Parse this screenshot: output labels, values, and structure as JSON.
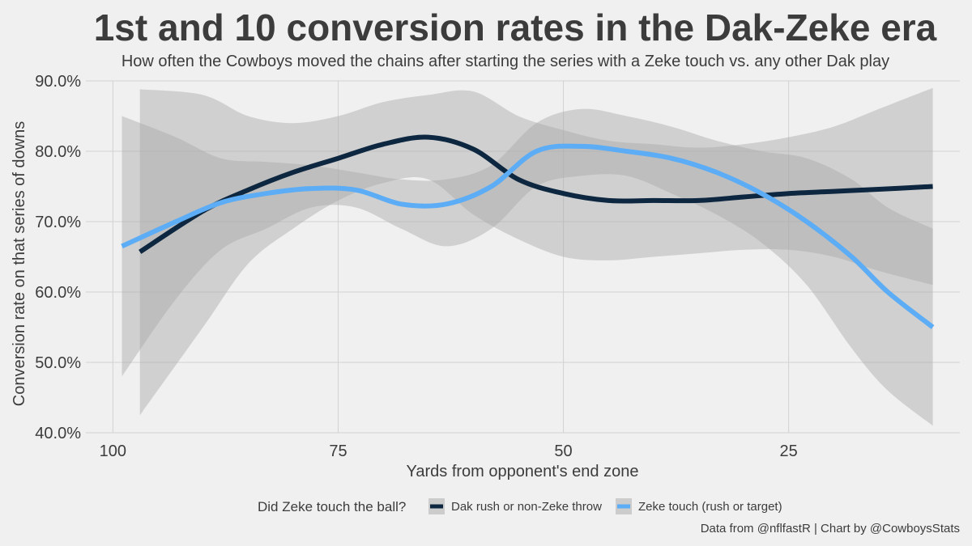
{
  "chart_data": {
    "type": "line",
    "title": "1st and 10 conversion rates in the Dak-Zeke era",
    "subtitle": "How often the Cowboys moved the chains after starting the series with a Zeke touch vs. any other Dak play",
    "xlabel": "Yards from opponent's end zone",
    "ylabel": "Conversion rate on that series of downs",
    "x_reversed": true,
    "xlim": [
      103,
      6
    ],
    "ylim": [
      40,
      90
    ],
    "x_ticks": [
      {
        "value": 100,
        "label": "100"
      },
      {
        "value": 75,
        "label": "75"
      },
      {
        "value": 50,
        "label": "50"
      },
      {
        "value": 25,
        "label": "25"
      }
    ],
    "y_ticks": [
      {
        "value": 40,
        "label": "40.0%"
      },
      {
        "value": 50,
        "label": "50.0%"
      },
      {
        "value": 60,
        "label": "60.0%"
      },
      {
        "value": 70,
        "label": "70.0%"
      },
      {
        "value": 80,
        "label": "80.0%"
      },
      {
        "value": 90,
        "label": "90.0%"
      }
    ],
    "legend": {
      "title": "Did Zeke touch the ball?",
      "position": "bottom"
    },
    "series": [
      {
        "name": "Dak rush or non-Zeke throw",
        "color": "#0e2740",
        "x": [
          97,
          90,
          85,
          80,
          75,
          70,
          65,
          60,
          55,
          50,
          45,
          40,
          35,
          30,
          25,
          20,
          15,
          9
        ],
        "y": [
          65.7,
          71.5,
          74.5,
          77.0,
          79.0,
          81.0,
          82.0,
          80.3,
          76.0,
          74.0,
          73.0,
          73.0,
          73.0,
          73.5,
          74.0,
          74.3,
          74.6,
          75.0
        ],
        "lower": [
          42.5,
          55.0,
          64.0,
          69.0,
          73.0,
          75.5,
          76.0,
          71.0,
          67.5,
          65.0,
          64.5,
          65.0,
          65.5,
          66.0,
          66.0,
          65.0,
          63.0,
          61.0
        ],
        "upper": [
          88.8,
          88.0,
          85.0,
          84.0,
          85.0,
          87.0,
          88.0,
          88.5,
          85.0,
          83.0,
          81.5,
          81.0,
          80.5,
          81.0,
          82.0,
          83.5,
          86.0,
          89.0
        ]
      },
      {
        "name": "Zeke touch (rush or target)",
        "color": "#5cadf5",
        "x": [
          99,
          93,
          88,
          83,
          78,
          73,
          68,
          63,
          58,
          53,
          48,
          43,
          38,
          33,
          28,
          23,
          18,
          14,
          9
        ],
        "y": [
          66.5,
          70.0,
          72.7,
          74.0,
          74.7,
          74.5,
          72.5,
          72.5,
          75.0,
          80.0,
          80.7,
          80.0,
          79.0,
          77.0,
          74.0,
          70.0,
          65.0,
          60.0,
          55.0
        ],
        "lower": [
          48.0,
          59.0,
          66.0,
          69.0,
          72.0,
          72.0,
          69.0,
          66.5,
          69.0,
          75.0,
          76.5,
          76.5,
          74.0,
          71.0,
          67.0,
          61.0,
          52.0,
          46.0,
          41.0
        ],
        "upper": [
          85.0,
          82.0,
          79.0,
          78.5,
          78.0,
          77.0,
          76.0,
          76.0,
          78.0,
          84.0,
          86.0,
          85.0,
          83.5,
          81.5,
          80.0,
          79.0,
          76.0,
          72.0,
          69.0
        ]
      }
    ],
    "caption": "Data from @nflfastR | Chart by @CowboysStats"
  }
}
